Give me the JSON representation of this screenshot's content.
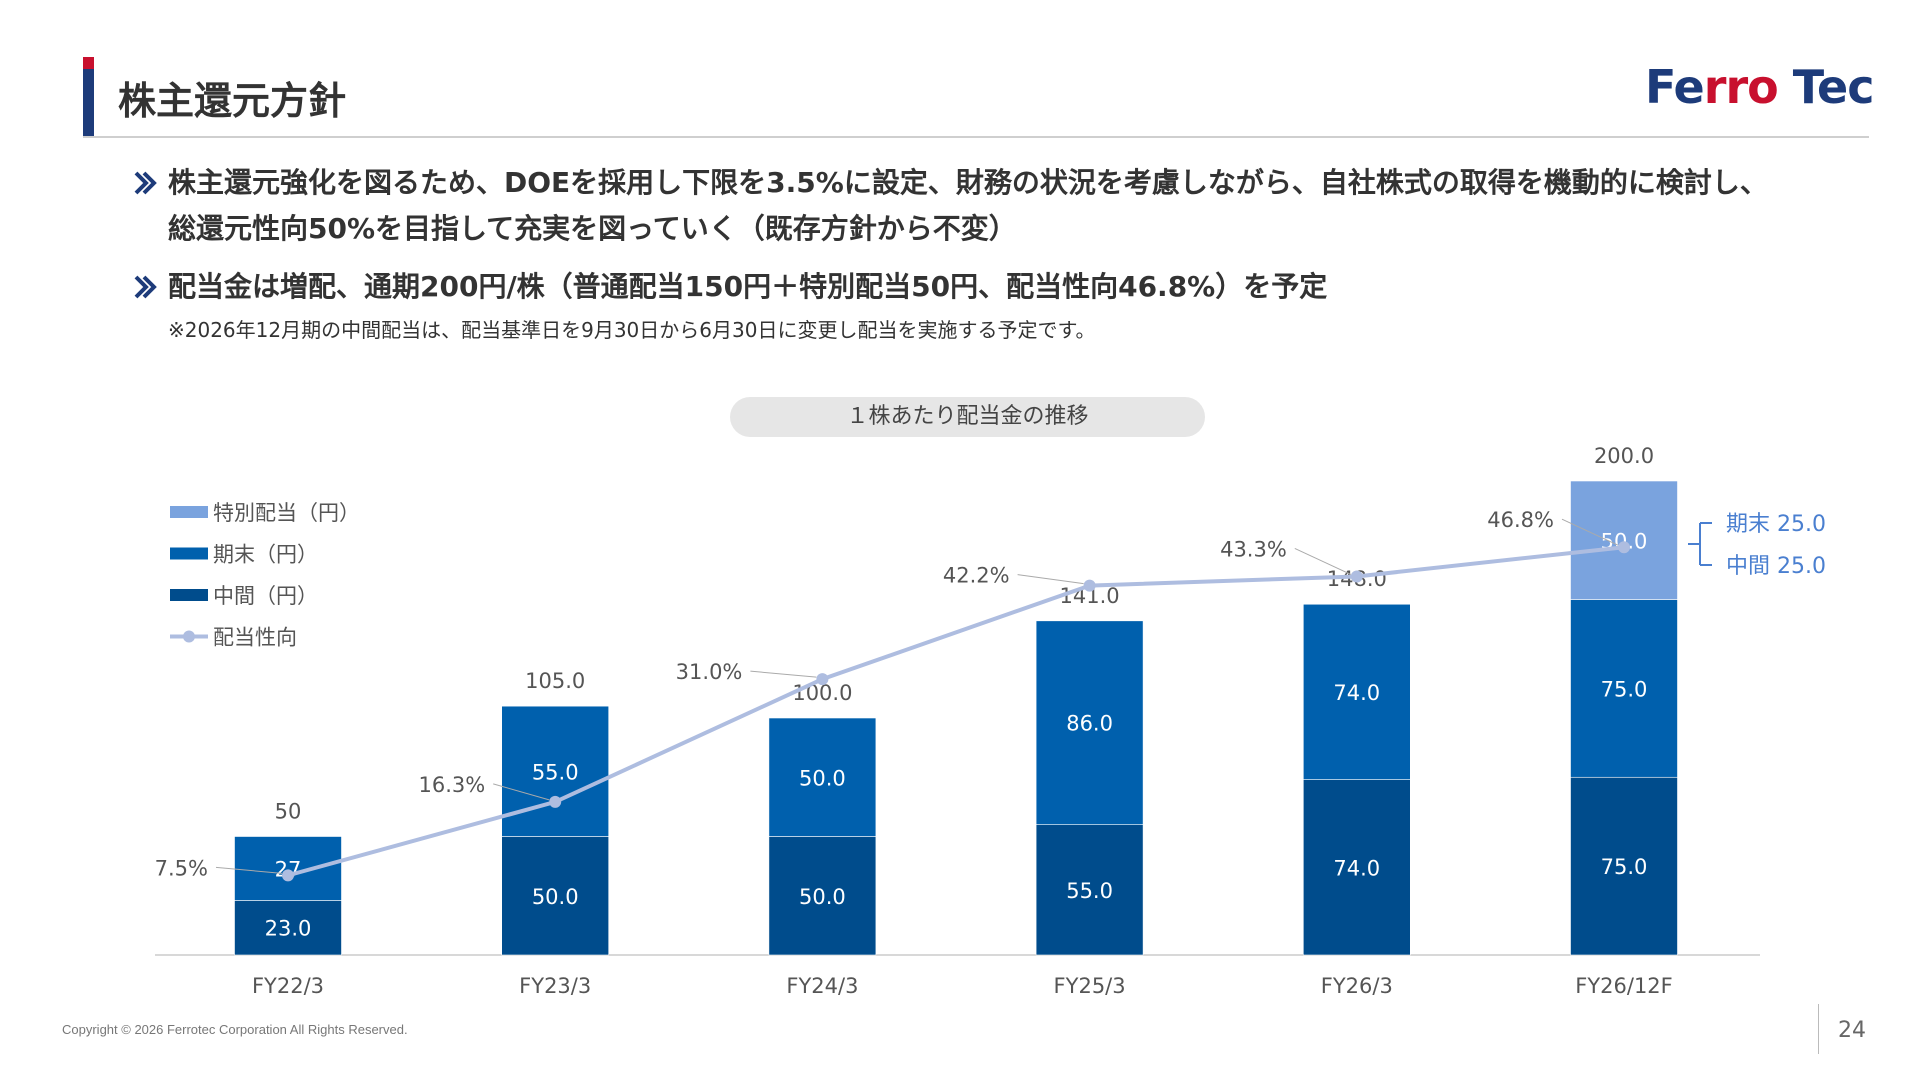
{
  "header": {
    "title": "株主還元方針",
    "logo_text_a": "Fe",
    "logo_text_b": "rro",
    "logo_text_c": " Tec"
  },
  "bullets": [
    "株主還元強化を図るため、DOEを採用し下限を3.5%に設定、財務の状況を考慮しながら、自社株式の取得を機動的に検討し、総還元性向50%を目指して充実を図っていく（既存方針から不変）",
    "配当金は増配、通期200円/株（普通配当150円＋特別配当50円、配当性向46.8%）を予定"
  ],
  "note": "※2026年12月期の中間配当は、配当基準日を9月30日から6月30日に変更し配当を実施する予定です。",
  "chart_title": "１株あたり配当金の推移",
  "chart_data": {
    "type": "bar",
    "stacked": true,
    "categories": [
      "FY22/3",
      "FY23/3",
      "FY24/3",
      "FY25/3",
      "FY26/3",
      "FY26/12F"
    ],
    "series": [
      {
        "name": "中間（円）",
        "color": "#004c8c",
        "values": [
          23.0,
          50.0,
          50.0,
          55.0,
          74.0,
          75.0
        ],
        "labels": [
          "23.0",
          "50.0",
          "50.0",
          "55.0",
          "74.0",
          "75.0"
        ]
      },
      {
        "name": "期末（円）",
        "color": "#0060ad",
        "values": [
          27,
          55.0,
          50.0,
          86.0,
          74.0,
          75.0
        ],
        "labels": [
          "27",
          "55.0",
          "50.0",
          "86.0",
          "74.0",
          "75.0"
        ]
      },
      {
        "name": "特別配当（円）",
        "color": "#7aa3de",
        "values": [
          0,
          0,
          0,
          0,
          0,
          50.0
        ],
        "labels": [
          "",
          "",
          "",
          "",
          "",
          "50.0"
        ]
      }
    ],
    "totals": [
      "50",
      "105.0",
      "100.0",
      "141.0",
      "148.0",
      "200.0"
    ],
    "payout_ratio": {
      "name": "配当性向",
      "color": "#aebde0",
      "values": [
        7.5,
        16.3,
        31.0,
        42.2,
        43.3,
        46.8
      ],
      "labels": [
        "7.5%",
        "16.3%",
        "31.0%",
        "42.2%",
        "43.3%",
        "46.8%"
      ]
    },
    "special_breakdown": {
      "kimatsu": "期末 25.0",
      "chukan": "中間 25.0"
    },
    "legend_position": "top-left",
    "grid": false
  },
  "footer": {
    "copyright": "Copyright © 2026 Ferrotec Corporation All Rights Reserved.",
    "page_number": "24"
  }
}
